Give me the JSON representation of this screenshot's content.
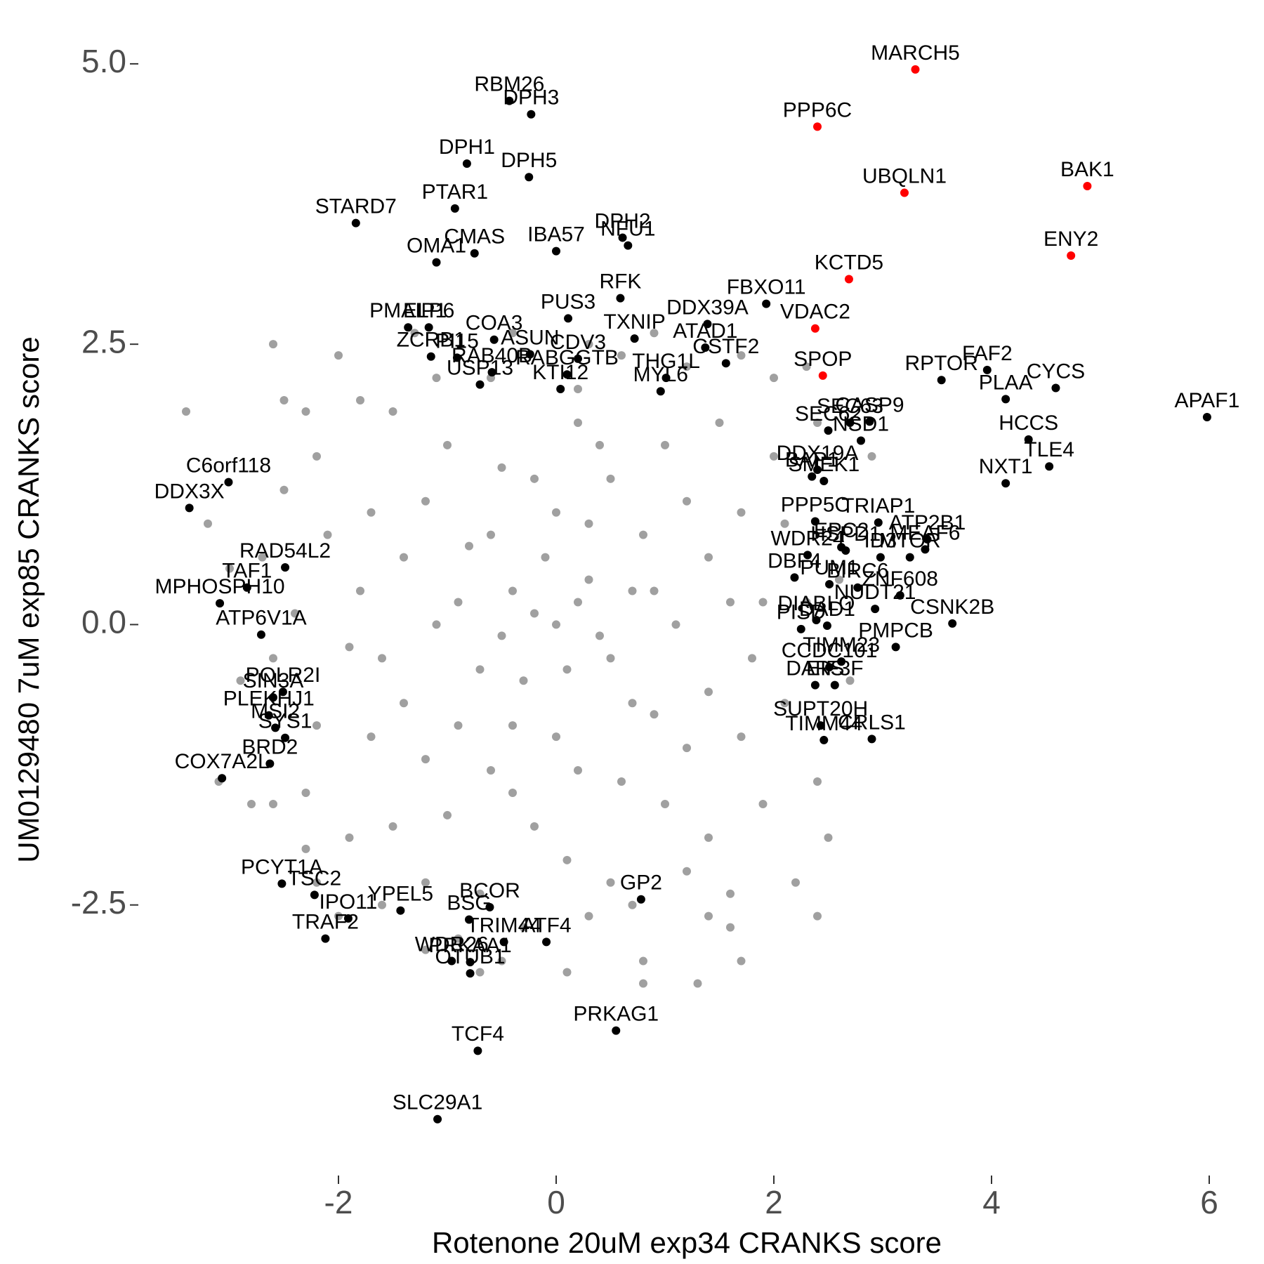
{
  "chart_data": {
    "type": "scatter",
    "x_label": "Rotenone 20uM exp34 CRANKS score",
    "y_label": "UM0129480 7uM exp85 CRANKS score",
    "xlim": [
      -3.8,
      6.2
    ],
    "ylim": [
      -4.9,
      5.35
    ],
    "xticks": [
      -2,
      0,
      2,
      4,
      6
    ],
    "yticks": [
      {
        "value": 5,
        "label": "5.0"
      },
      2.5,
      {
        "value": 0,
        "label": "0.0"
      },
      -2.5
    ],
    "grid": false,
    "series": [
      {
        "color": "#a0a0a0",
        "x": [
          0,
          0.3,
          -0.4,
          0.5,
          -0.3,
          0.8,
          -0.8,
          0.9,
          -0.9,
          0,
          0,
          1.1,
          -1.1,
          0.5,
          -0.5,
          0.6,
          -0.6,
          1.4,
          -1.4,
          1.4,
          -1.4,
          0.2,
          -0.2,
          1.0,
          -1.0,
          1.0,
          -1.0,
          1.7,
          -1.7,
          1.7,
          -1.7,
          1.9,
          -1.9,
          0.2,
          0.1,
          1.5,
          -1.5,
          1.4,
          -1.5,
          2.1,
          -2.1,
          2.1,
          -2.2,
          2.0,
          -2.2,
          0.6,
          -0.6,
          0.5,
          -0.7,
          1.2,
          -1.1,
          1.2,
          -1.2,
          2.3,
          -2.4,
          2.4,
          -2.3,
          -2.7,
          -2.6,
          -2.5,
          2.4,
          1.9,
          -1.9,
          -1.8,
          0.9,
          -0.4,
          0.3,
          -0.3,
          1.6,
          -1.6,
          2.0,
          -2.3,
          -2.6,
          -3.0,
          -2.9,
          2.6,
          2.7,
          0.7,
          1.4,
          -1.3,
          0.3,
          -0.9,
          0.8,
          -0.5,
          1.6,
          -2.0,
          -2.8,
          -2.5,
          -2.0,
          1.7,
          2.3,
          2.9,
          2.5,
          -3.1,
          -3.2,
          -2.3,
          -1.2,
          -0.7,
          0.1,
          1.3,
          -3.4,
          -2.2,
          0.8,
          2.2,
          1.7,
          -2.6,
          2.4,
          0.2,
          -0.2,
          0.4,
          -0.5,
          0.1,
          -0.1,
          0.7,
          -0.7,
          0.3,
          -0.4,
          0.9,
          -0.9,
          1.2,
          -1.2,
          1.2,
          -1.2,
          0.7,
          -0.6,
          0.2,
          -0.2,
          1.6,
          -1.6,
          0.4,
          -0.4,
          1.8,
          -1.8
        ],
        "y": [
          0,
          0.4,
          0.3,
          -0.3,
          -0.5,
          0.8,
          0.7,
          -0.8,
          -0.9,
          1,
          -1,
          0,
          0,
          1.3,
          1.4,
          -1.4,
          -1.3,
          0.6,
          0.6,
          -0.6,
          -0.7,
          1.8,
          -1.8,
          1.6,
          1.6,
          -1.6,
          -1.7,
          1.0,
          1.0,
          -1.0,
          -1.0,
          0.2,
          -0.2,
          2.1,
          -2.1,
          1.8,
          1.9,
          -1.9,
          -1.8,
          0.9,
          0.8,
          -0.7,
          -0.9,
          1.5,
          1.5,
          2.4,
          2.2,
          -2.3,
          -2.4,
          2.3,
          2.2,
          -2.2,
          -2.3,
          0.2,
          0.1,
          -1.4,
          -1.5,
          0.6,
          -0.3,
          1.2,
          1.8,
          -1.6,
          -1.9,
          2.0,
          2.6,
          2.6,
          -2.6,
          -2.7,
          -2.4,
          -2.5,
          2.2,
          1.9,
          -1.6,
          0.5,
          -0.5,
          0.4,
          -0.5,
          -2.5,
          -2.6,
          2.6,
          2.5,
          -2.8,
          -3.0,
          -3.0,
          -2.7,
          -2.6,
          -1.6,
          2.0,
          2.4,
          2.4,
          2.3,
          1.5,
          -1.9,
          -1.4,
          0.9,
          -2.0,
          -2.9,
          -3.1,
          -3.1,
          -3.2,
          1.9,
          -2.3,
          -3.2,
          -2.3,
          -3.0,
          2.5,
          -2.6,
          0.2,
          0.1,
          -0.1,
          -0.1,
          -0.4,
          0.6,
          0.3,
          -0.4,
          0.9,
          -0.9,
          0.3,
          0.2,
          1.1,
          1.1,
          -1.1,
          -1.2,
          -0.7,
          0.8,
          -1.3,
          1.3,
          0.2,
          -0.3,
          1.6,
          -1.5,
          -0.3,
          0.3
        ]
      },
      {
        "color": "#000000",
        "labels": [
          "RBM26",
          "DPH3",
          "DPH1",
          "DPH5",
          "PTAR1",
          "STARD7",
          "CMAS",
          "OMA1",
          "IBA57",
          "DPH2",
          "NFU1",
          "RFK",
          "PMAIP1",
          "ELP6",
          "COA3",
          "PUS3",
          "TXNIP",
          "ATAD1",
          "DDX39A",
          "FBXO11",
          "THG1L",
          "CDV3",
          "ZCRB1",
          "PI15",
          "RAB40B",
          "ASUN",
          "RABGGTB",
          "KTI12",
          "USP13",
          "MYL6",
          "CSTF2",
          "CASP9",
          "SEC63",
          "NSD1",
          "RPTOR",
          "FAF2",
          "PLAA",
          "CYCS",
          "HCCS",
          "APAF1",
          "NXT1",
          "TLE4",
          "SEC62",
          "DDX19A",
          "BAP1",
          "SMEK1",
          "PPP5C",
          "TRIAP1",
          "ID3",
          "ATP2B1",
          "MEAF6",
          "MTOR",
          "EPC2",
          "HSPD1",
          "WDR24",
          "BIRC6",
          "DBF4",
          "PUM1",
          "ZNF608",
          "NUDT21",
          "CSNK2B",
          "DIABLO",
          "DAD1",
          "PISD",
          "PMPCB",
          "DARS",
          "TIMM23",
          "CCDC101",
          "EIF3F",
          "SUPT20H",
          "CRLS1",
          "TIMM44",
          "C6orf118",
          "DDX3X",
          "RAD54L2",
          "TAF1",
          "MPHOSPH10",
          "ATP6V1A",
          "POLR2I",
          "SIN3A",
          "PLEKHJ1",
          "MSI2",
          "SYS1",
          "BRD2",
          "COX7A2L",
          "PCYT1A",
          "TSC2",
          "IPO11",
          "TRAF2",
          "YPEL5",
          "BCOR",
          "BSG",
          "TRIM44",
          "ATF4",
          "PRKAA1",
          "WDR26",
          "OTUB1",
          "GP2",
          "PRKAG1",
          "TCF4",
          "SLC29A1"
        ],
        "x": [
          -0.43,
          -0.23,
          -0.82,
          -0.25,
          -0.93,
          -1.84,
          -0.75,
          -1.1,
          0.0,
          0.61,
          0.66,
          0.59,
          -1.36,
          -1.17,
          -0.57,
          0.11,
          0.72,
          1.37,
          1.39,
          1.93,
          1.01,
          0.2,
          -1.15,
          -0.91,
          -0.59,
          -0.24,
          0.1,
          0.04,
          -0.7,
          0.96,
          1.56,
          2.88,
          2.7,
          2.8,
          3.54,
          3.96,
          4.13,
          4.59,
          4.34,
          5.98,
          4.13,
          4.53,
          2.5,
          2.4,
          2.35,
          2.46,
          2.38,
          2.96,
          2.98,
          3.41,
          3.39,
          3.25,
          2.62,
          2.66,
          2.31,
          2.77,
          2.19,
          2.51,
          3.16,
          2.93,
          3.64,
          2.39,
          2.49,
          2.25,
          3.12,
          2.38,
          2.62,
          2.51,
          2.56,
          2.43,
          2.9,
          2.46,
          -3.01,
          -3.37,
          -2.49,
          -2.84,
          -3.09,
          -2.71,
          -2.51,
          -2.6,
          -2.64,
          -2.58,
          -2.49,
          -2.63,
          -3.07,
          -2.52,
          -2.22,
          -1.91,
          -2.12,
          -1.43,
          -0.61,
          -0.8,
          -0.48,
          -0.09,
          -0.79,
          -0.96,
          -0.79,
          0.78,
          0.55,
          -0.72,
          -1.09
        ],
        "y": [
          4.67,
          4.55,
          4.11,
          3.99,
          3.71,
          3.58,
          3.31,
          3.23,
          3.33,
          3.45,
          3.38,
          2.91,
          2.65,
          2.65,
          2.54,
          2.73,
          2.55,
          2.47,
          2.68,
          2.86,
          2.2,
          2.37,
          2.39,
          2.38,
          2.25,
          2.41,
          2.23,
          2.1,
          2.14,
          2.08,
          2.33,
          1.81,
          1.8,
          1.64,
          2.18,
          2.27,
          2.01,
          2.11,
          1.65,
          1.85,
          1.26,
          1.41,
          1.73,
          1.38,
          1.32,
          1.28,
          0.92,
          0.91,
          0.6,
          0.76,
          0.67,
          0.6,
          0.69,
          0.66,
          0.62,
          0.33,
          0.42,
          0.36,
          0.26,
          0.14,
          0.01,
          0.04,
          -0.01,
          -0.04,
          -0.2,
          -0.54,
          -0.33,
          -0.38,
          -0.54,
          -0.9,
          -1.02,
          -1.03,
          1.27,
          1.04,
          0.51,
          0.33,
          0.19,
          -0.09,
          -0.6,
          -0.65,
          -0.81,
          -0.92,
          -1.01,
          -1.24,
          -1.37,
          -2.31,
          -2.41,
          -2.62,
          -2.8,
          -2.55,
          -2.52,
          -2.63,
          -2.83,
          -2.83,
          -3.01,
          -3.0,
          -3.11,
          -2.45,
          -3.62,
          -3.8,
          -4.41
        ]
      },
      {
        "color": "#ff0000",
        "labels": [
          "MARCH5",
          "PPP6C",
          "UBQLN1",
          "BAK1",
          "ENY2",
          "KCTD5",
          "VDAC2",
          "SPOP"
        ],
        "x": [
          3.3,
          2.4,
          3.2,
          4.88,
          4.73,
          2.69,
          2.38,
          2.45
        ],
        "y": [
          4.95,
          4.44,
          3.85,
          3.91,
          3.29,
          3.08,
          2.64,
          2.22
        ]
      }
    ]
  }
}
